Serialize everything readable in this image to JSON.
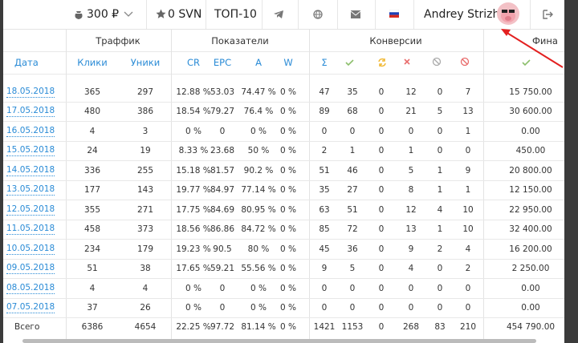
{
  "topbar": {
    "balance": "300 ₽",
    "svn": "0 SVN",
    "top": "ТОП-10",
    "user": "Andrey Strizh"
  },
  "table": {
    "groups": [
      "Траффик",
      "Показатели",
      "Конверсии",
      "Фина"
    ],
    "header": [
      "Дата",
      "Клики",
      "Уники",
      "CR",
      "EPC",
      "A",
      "W",
      "Σ"
    ],
    "rows": [
      [
        "18.05.2018",
        "365",
        "297",
        "12.88 %",
        "53.03",
        "74.47 %",
        "0 %",
        "47",
        "35",
        "0",
        "12",
        "0",
        "7",
        "15 750.00"
      ],
      [
        "17.05.2018",
        "480",
        "386",
        "18.54 %",
        "79.27",
        "76.4 %",
        "0 %",
        "89",
        "68",
        "0",
        "21",
        "5",
        "13",
        "30 600.00"
      ],
      [
        "16.05.2018",
        "4",
        "3",
        "0 %",
        "0",
        "0 %",
        "0 %",
        "0",
        "0",
        "0",
        "0",
        "0",
        "1",
        "0.00"
      ],
      [
        "15.05.2018",
        "24",
        "19",
        "8.33 %",
        "23.68",
        "50 %",
        "0 %",
        "2",
        "1",
        "0",
        "1",
        "0",
        "0",
        "450.00"
      ],
      [
        "14.05.2018",
        "336",
        "255",
        "15.18 %",
        "81.57",
        "90.2 %",
        "0 %",
        "51",
        "46",
        "0",
        "5",
        "1",
        "9",
        "20 800.00"
      ],
      [
        "13.05.2018",
        "177",
        "143",
        "19.77 %",
        "84.97",
        "77.14 %",
        "0 %",
        "35",
        "27",
        "0",
        "8",
        "1",
        "1",
        "12 150.00"
      ],
      [
        "12.05.2018",
        "355",
        "271",
        "17.75 %",
        "84.69",
        "80.95 %",
        "0 %",
        "63",
        "51",
        "0",
        "12",
        "4",
        "10",
        "22 950.00"
      ],
      [
        "11.05.2018",
        "458",
        "373",
        "18.56 %",
        "86.86",
        "84.72 %",
        "0 %",
        "85",
        "72",
        "0",
        "13",
        "1",
        "10",
        "32 400.00"
      ],
      [
        "10.05.2018",
        "234",
        "179",
        "19.23 %",
        "90.5",
        "80 %",
        "0 %",
        "45",
        "36",
        "0",
        "9",
        "2",
        "4",
        "16 200.00"
      ],
      [
        "09.05.2018",
        "51",
        "38",
        "17.65 %",
        "59.21",
        "55.56 %",
        "0 %",
        "9",
        "5",
        "0",
        "4",
        "0",
        "2",
        "2 250.00"
      ],
      [
        "08.05.2018",
        "4",
        "4",
        "0 %",
        "0",
        "0 %",
        "0 %",
        "0",
        "0",
        "0",
        "0",
        "0",
        "0",
        "0.00"
      ],
      [
        "07.05.2018",
        "37",
        "26",
        "0 %",
        "0",
        "0 %",
        "0 %",
        "0",
        "0",
        "0",
        "0",
        "0",
        "0",
        "0.00"
      ]
    ],
    "total": [
      "Всего",
      "6386",
      "4654",
      "22.25 %",
      "97.72",
      "81.14 %",
      "0 %",
      "1421",
      "1153",
      "0",
      "268",
      "83",
      "210",
      "454 790.00"
    ]
  }
}
